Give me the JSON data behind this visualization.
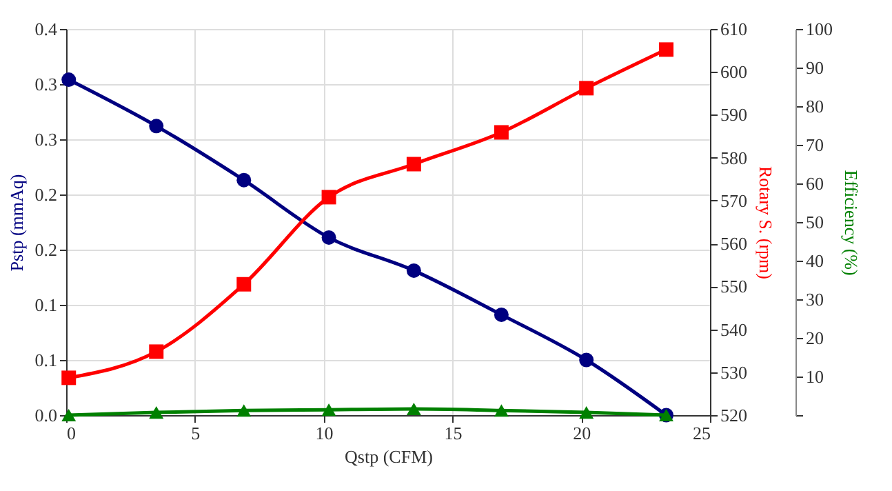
{
  "chart_data": {
    "type": "line",
    "xlabel": "Qstp (CFM)",
    "ylabel": "Pstp (mmAq)",
    "y2label": "Rotary S. (rpm)",
    "y3label": "Efficiency (%)",
    "x": [
      0.1,
      3.5,
      6.9,
      10.2,
      13.5,
      16.9,
      20.2,
      23.3
    ],
    "xlim": [
      0,
      25
    ],
    "xticks": [
      0,
      5,
      10,
      15,
      20,
      25
    ],
    "ylim": [
      0,
      0.35
    ],
    "yticks": [
      {
        "value": 0,
        "label": "0.0"
      },
      {
        "value": 0.05,
        "label": "0.1"
      },
      {
        "value": 0.1,
        "label": "0.1"
      },
      {
        "value": 0.15,
        "label": "0.2"
      },
      {
        "value": 0.2,
        "label": "0.2"
      },
      {
        "value": 0.25,
        "label": "0.3"
      },
      {
        "value": 0.3,
        "label": "0.3"
      },
      {
        "value": 0.35,
        "label": "0.4"
      }
    ],
    "y2lim": [
      520,
      610
    ],
    "y2ticks": [
      520,
      530,
      540,
      550,
      560,
      570,
      580,
      590,
      600,
      610
    ],
    "y3lim": [
      0,
      100
    ],
    "y3ticks": [
      {
        "value": 0,
        "label": null
      },
      10,
      20,
      30,
      40,
      50,
      60,
      70,
      80,
      90,
      100
    ],
    "grid": true,
    "series": [
      {
        "color": "#000080",
        "marker": "circle",
        "values": [
          0.304,
          0.262,
          0.213,
          0.161,
          0.131,
          0.091,
          0.05,
          0
        ]
      },
      {
        "color": "#ff0000",
        "marker": "square",
        "axis": "y2",
        "values": [
          528.7,
          534.8,
          550.5,
          570.8,
          578.5,
          585.9,
          596.2,
          605.2
        ]
      },
      {
        "color": "#008000",
        "marker": "triangle",
        "axis": "y3",
        "values": [
          0,
          0.7,
          1.2,
          1.4,
          1.6,
          1.2,
          0.7,
          0
        ]
      }
    ]
  }
}
